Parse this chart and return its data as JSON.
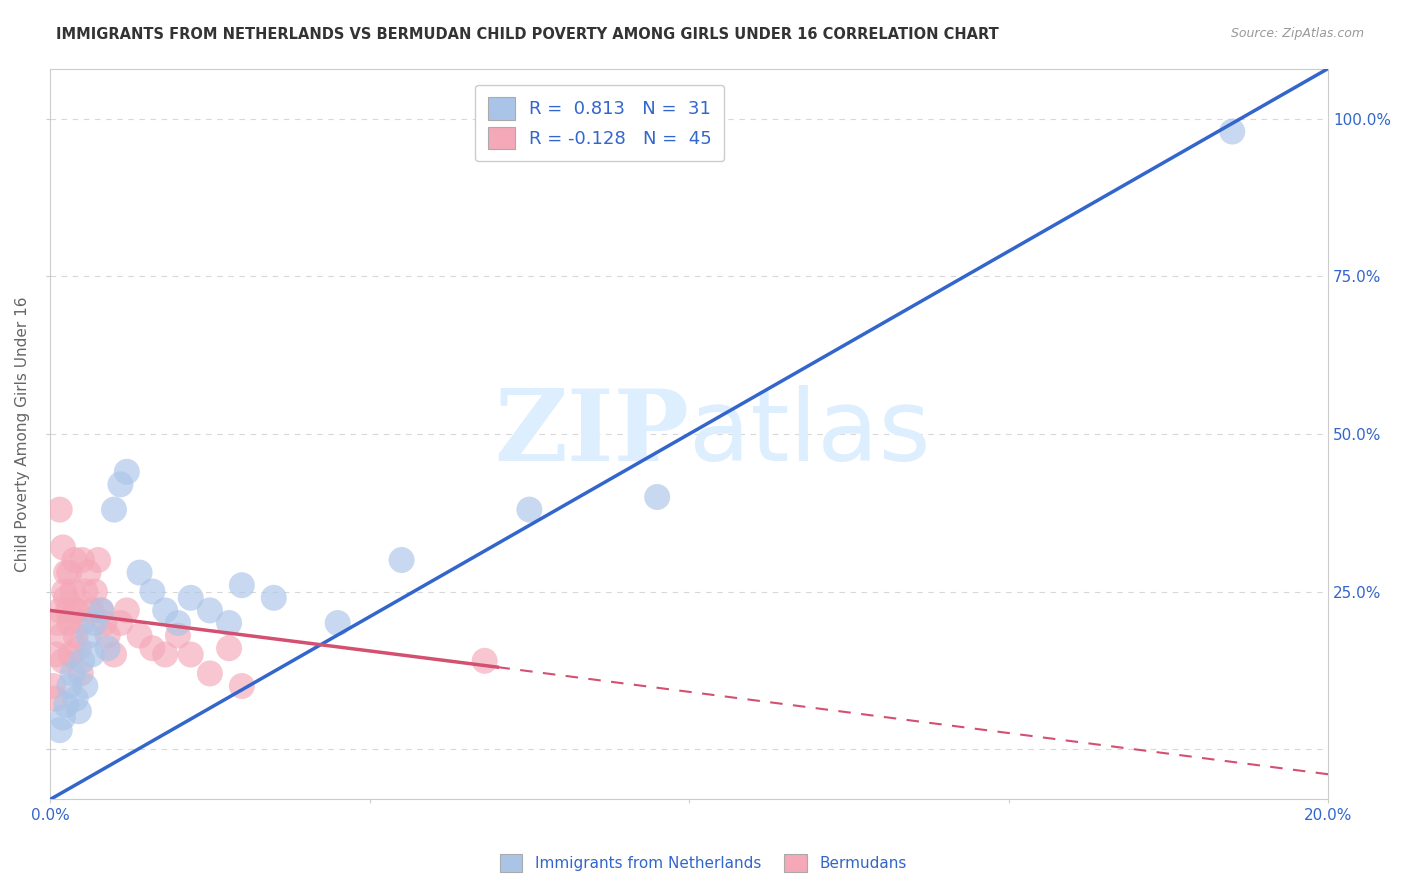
{
  "title": "IMMIGRANTS FROM NETHERLANDS VS BERMUDAN CHILD POVERTY AMONG GIRLS UNDER 16 CORRELATION CHART",
  "source": "Source: ZipAtlas.com",
  "ylabel": "Child Poverty Among Girls Under 16",
  "x_tick_labels": [
    "0.0%",
    "",
    "",
    "",
    "20.0%"
  ],
  "x_ticks": [
    0.0,
    5.0,
    10.0,
    15.0,
    20.0
  ],
  "y_tick_labels_right": [
    "25.0%",
    "50.0%",
    "75.0%",
    "100.0%"
  ],
  "y_ticks_right": [
    25.0,
    50.0,
    75.0,
    100.0
  ],
  "xlim": [
    0.0,
    20.0
  ],
  "ylim": [
    -8.0,
    108.0
  ],
  "legend_label1": "Immigrants from Netherlands",
  "legend_label2": "Bermudans",
  "R1": "0.813",
  "N1": "31",
  "R2": "-0.128",
  "N2": "45",
  "blue_color": "#aac4e8",
  "blue_line_color": "#3366cc",
  "pink_color": "#f4a8b8",
  "pink_line_color": "#d45070",
  "background_color": "#ffffff",
  "grid_color": "#d8d8d8",
  "watermark_color": "#ddeeff",
  "blue_dots_x": [
    0.15,
    0.2,
    0.25,
    0.3,
    0.35,
    0.4,
    0.45,
    0.5,
    0.55,
    0.6,
    0.65,
    0.7,
    0.8,
    0.9,
    1.0,
    1.1,
    1.2,
    1.4,
    1.6,
    1.8,
    2.0,
    2.2,
    2.5,
    2.8,
    3.0,
    3.5,
    4.5,
    5.5,
    7.5,
    9.5,
    18.5
  ],
  "blue_dots_y": [
    3,
    5,
    7,
    10,
    12,
    8,
    6,
    14,
    10,
    18,
    15,
    20,
    22,
    16,
    38,
    42,
    44,
    28,
    25,
    22,
    20,
    24,
    22,
    20,
    26,
    24,
    20,
    30,
    38,
    40,
    98
  ],
  "pink_dots_x": [
    0.05,
    0.08,
    0.1,
    0.12,
    0.15,
    0.18,
    0.2,
    0.22,
    0.25,
    0.28,
    0.3,
    0.32,
    0.35,
    0.38,
    0.4,
    0.42,
    0.45,
    0.48,
    0.5,
    0.55,
    0.6,
    0.65,
    0.7,
    0.75,
    0.8,
    0.85,
    0.9,
    1.0,
    1.1,
    1.2,
    1.4,
    1.6,
    1.8,
    2.0,
    2.2,
    2.5,
    2.8,
    3.0,
    0.15,
    0.2,
    0.3,
    0.4,
    0.5,
    6.8,
    0.25
  ],
  "pink_dots_y": [
    10,
    8,
    15,
    20,
    22,
    18,
    14,
    25,
    28,
    22,
    20,
    15,
    25,
    30,
    18,
    22,
    16,
    12,
    20,
    25,
    28,
    22,
    25,
    30,
    22,
    20,
    18,
    15,
    20,
    22,
    18,
    16,
    15,
    18,
    15,
    12,
    16,
    10,
    38,
    32,
    28,
    22,
    30,
    14,
    24
  ],
  "blue_line_x0": 0.0,
  "blue_line_y0": -8.0,
  "blue_line_x1": 20.0,
  "blue_line_y1": 108.0,
  "pink_line_solid_x0": 0.0,
  "pink_line_solid_y0": 22.0,
  "pink_line_solid_x1": 7.0,
  "pink_line_solid_y1": 13.0,
  "pink_line_dashed_x0": 7.0,
  "pink_line_dashed_y0": 13.0,
  "pink_line_dashed_x1": 20.0,
  "pink_line_dashed_y1": -4.0
}
